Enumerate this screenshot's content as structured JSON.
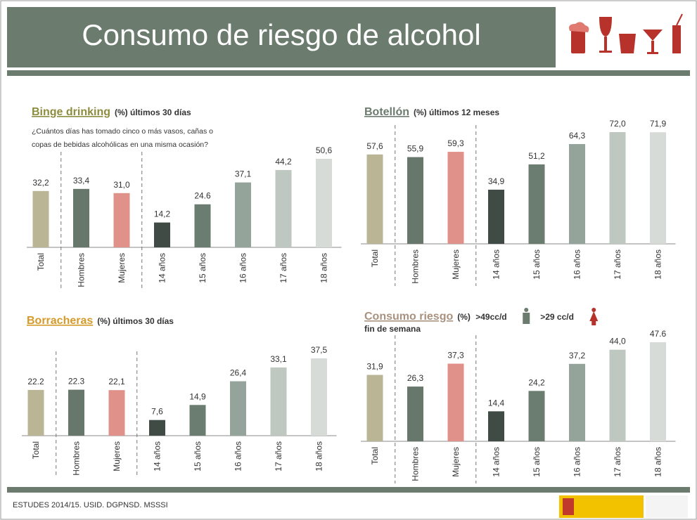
{
  "header": {
    "title": "Consumo de riesgo de alcohol"
  },
  "footer": {
    "source": "ESTUDES 2014/15. USID. DGPNSD. MSSSI"
  },
  "chart_data": [
    {
      "type": "bar",
      "title": "Binge drinking",
      "subtitle": "(%) últimos 30 días",
      "annotation": [
        "¿Cuántos días has tomado cinco o más vasos, cañas o",
        "copas de bebidas alcohólicas en una misma ocasión?"
      ],
      "categories": [
        "Total",
        "Hombres",
        "Mujeres",
        "14 años",
        "15 años",
        "16 años",
        "17 años",
        "18 años"
      ],
      "values": [
        32.2,
        33.4,
        31.0,
        14.2,
        24.6,
        37.1,
        44.2,
        50.6
      ],
      "value_labels": [
        "32,2",
        "33,4",
        "31,0",
        "14,2",
        "24.6",
        "37,1",
        "44,2",
        "50,6"
      ],
      "colors": [
        "#bab594",
        "#68776c",
        "#e0918a",
        "#3f4b44",
        "#6b7c71",
        "#95a49a",
        "#bfc7c1",
        "#d6dbd7"
      ]
    },
    {
      "type": "bar",
      "title": "Botellón",
      "subtitle": "(%) últimos 12 meses",
      "categories": [
        "Total",
        "Hombres",
        "Mujeres",
        "14 años",
        "15 años",
        "16 años",
        "17 años",
        "18 años"
      ],
      "values": [
        57.6,
        55.9,
        59.3,
        34.9,
        51.2,
        64.3,
        72.0,
        71.9
      ],
      "value_labels": [
        "57,6",
        "55,9",
        "59,3",
        "34,9",
        "51,2",
        "64,3",
        "72,0",
        "71,9"
      ],
      "colors": [
        "#bab594",
        "#68776c",
        "#e0918a",
        "#3f4b44",
        "#6b7c71",
        "#95a49a",
        "#bfc7c1",
        "#d6dbd7"
      ]
    },
    {
      "type": "bar",
      "title": "Borracheras",
      "subtitle": "(%) últimos 30 días",
      "categories": [
        "Total",
        "Hombres",
        "Mujeres",
        "14 años",
        "15 años",
        "16 años",
        "17 años",
        "18 años"
      ],
      "values": [
        22.2,
        22.3,
        22.1,
        7.6,
        14.9,
        26.4,
        33.1,
        37.5
      ],
      "value_labels": [
        "22.2",
        "22.3",
        "22,1",
        "7,6",
        "14,9",
        "26,4",
        "33,1",
        "37,5"
      ],
      "colors": [
        "#bab594",
        "#68776c",
        "#e0918a",
        "#3f4b44",
        "#6b7c71",
        "#95a49a",
        "#bfc7c1",
        "#d6dbd7"
      ]
    },
    {
      "type": "bar",
      "title": "Consumo riesgo",
      "subtitle": "(%)",
      "male_label": ">49cc/d",
      "female_label": ">29 cc/d",
      "subtitle2": "fin de semana",
      "categories": [
        "Total",
        "Hombres",
        "Mujeres",
        "14 años",
        "15 años",
        "16 años",
        "17 años",
        "18 años"
      ],
      "values": [
        31.9,
        26.3,
        37.3,
        14.4,
        24.2,
        37.2,
        44.0,
        47.6
      ],
      "value_labels": [
        "31,9",
        "26,3",
        "37,3",
        "14,4",
        "24,2",
        "37,2",
        "44,0",
        "47.6"
      ],
      "colors": [
        "#bab594",
        "#68776c",
        "#e0918a",
        "#3f4b44",
        "#6b7c71",
        "#95a49a",
        "#bfc7c1",
        "#d6dbd7"
      ]
    }
  ]
}
